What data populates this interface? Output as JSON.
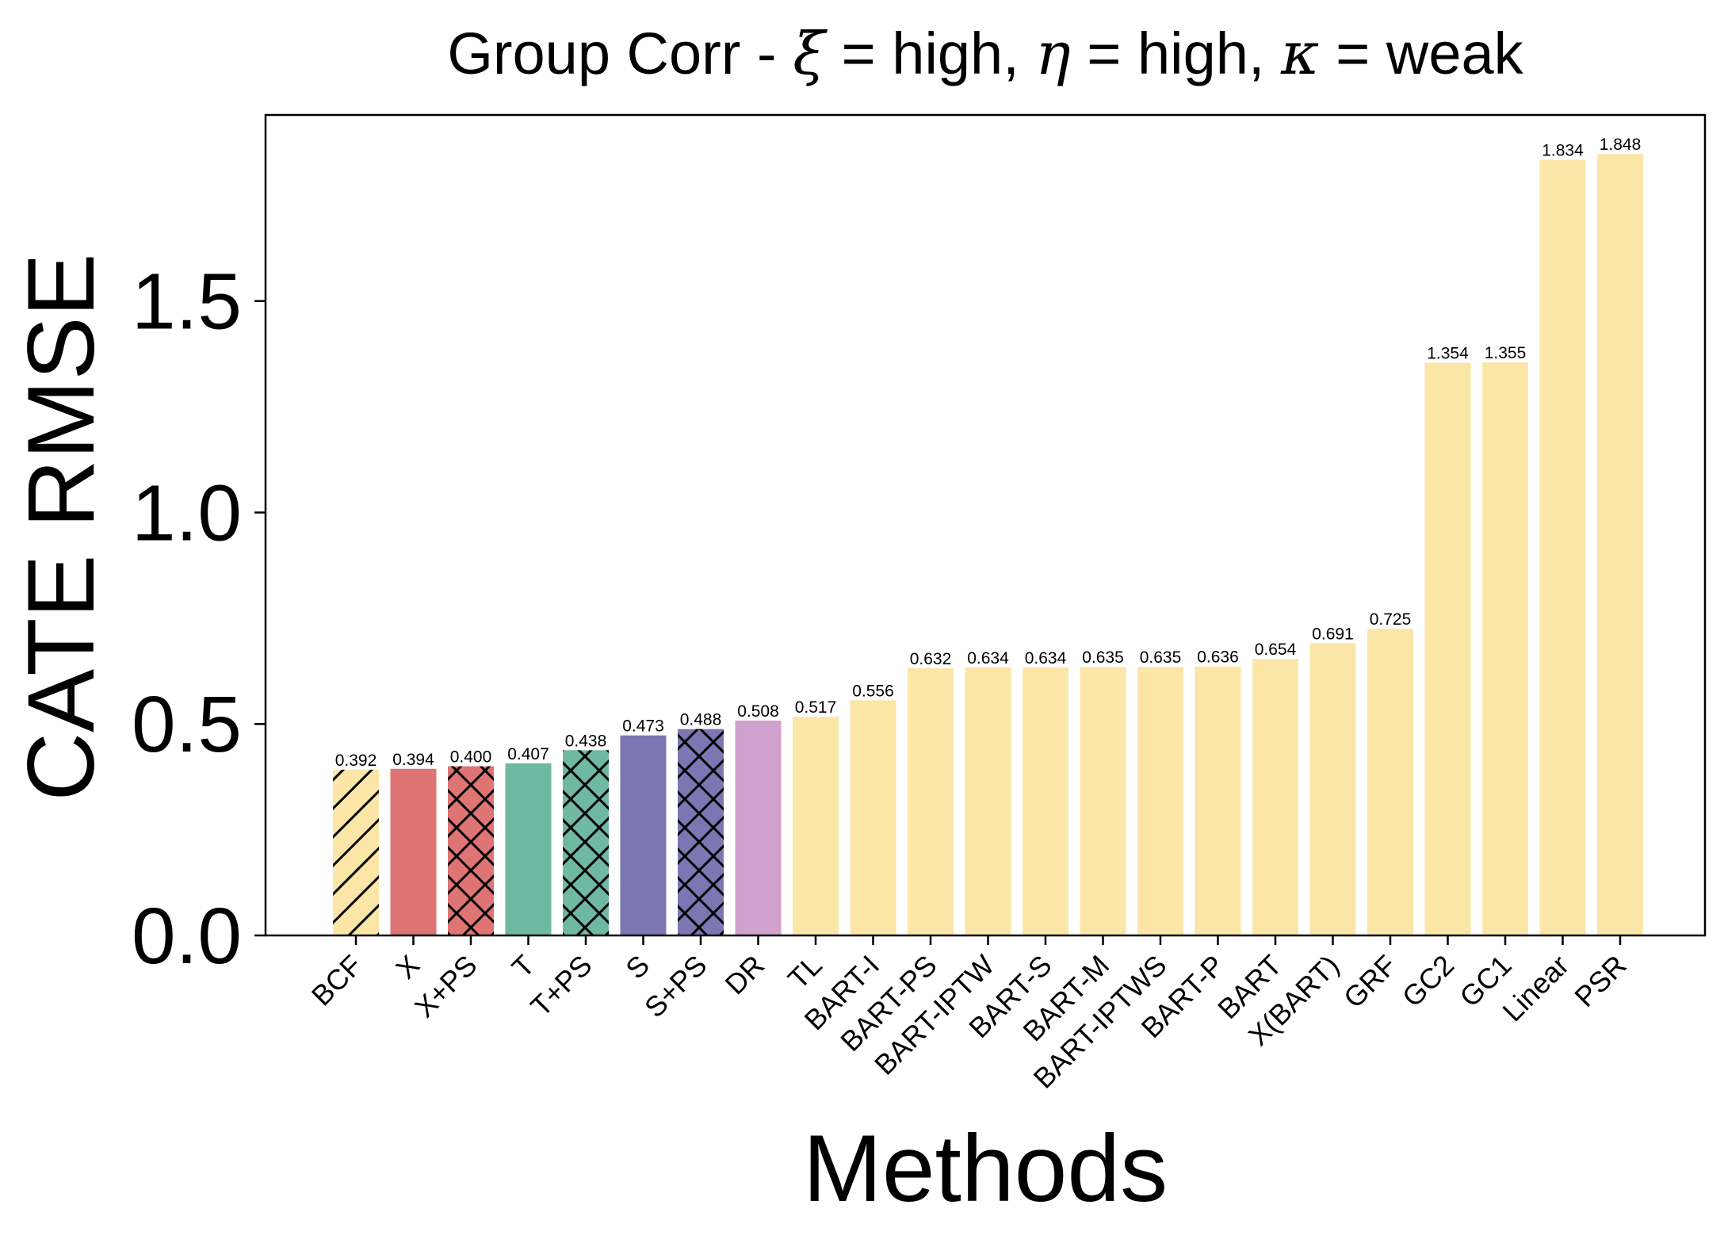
{
  "chart_data": {
    "type": "bar",
    "title": {
      "prefix": "Group Corr - ",
      "xi_symbol": "ξ",
      "xi_value": " = high, ",
      "eta_symbol": "η",
      "eta_value": " = high, ",
      "kappa_symbol": "κ",
      "kappa_value": " = weak"
    },
    "xlabel": "Methods",
    "ylabel": "CATE RMSE",
    "ylim": [
      0,
      1.94
    ],
    "yticks": [
      "0.0",
      "0.5",
      "1.0",
      "1.5"
    ],
    "categories": [
      "BCF",
      "X",
      "X+PS",
      "T",
      "T+PS",
      "S",
      "S+PS",
      "DR",
      "TL",
      "BART-I",
      "BART-PS",
      "BART-IPTW",
      "BART-S",
      "BART-M",
      "BART-IPTWS",
      "BART-P",
      "BART",
      "X(BART)",
      "GRF",
      "GC2",
      "GC1",
      "Linear",
      "PSR"
    ],
    "values": [
      0.392,
      0.394,
      0.4,
      0.407,
      0.438,
      0.473,
      0.488,
      0.508,
      0.517,
      0.556,
      0.632,
      0.634,
      0.634,
      0.635,
      0.635,
      0.636,
      0.654,
      0.691,
      0.725,
      1.354,
      1.355,
      1.834,
      1.848
    ],
    "value_labels": [
      "0.392",
      "0.394",
      "0.400",
      "0.407",
      "0.438",
      "0.473",
      "0.488",
      "0.508",
      "0.517",
      "0.556",
      "0.632",
      "0.634",
      "0.634",
      "0.635",
      "0.635",
      "0.636",
      "0.654",
      "0.691",
      "0.725",
      "1.354",
      "1.355",
      "1.834",
      "1.848"
    ],
    "colors": [
      "#fbe6a8",
      "#de7574",
      "#de7574",
      "#6fb8a2",
      "#6fb8a2",
      "#7c77b3",
      "#7c77b3",
      "#d0a1cd",
      "#fbe6a8",
      "#fbe6a8",
      "#fbe6a8",
      "#fbe6a8",
      "#fbe6a8",
      "#fbe6a8",
      "#fbe6a8",
      "#fbe6a8",
      "#fbe6a8",
      "#fbe6a8",
      "#fbe6a8",
      "#fbe6a8",
      "#fbe6a8",
      "#fbe6a8",
      "#fbe6a8"
    ],
    "hatches": [
      "diagonal",
      "none",
      "cross",
      "none",
      "cross",
      "none",
      "cross",
      "none",
      "none",
      "none",
      "none",
      "none",
      "none",
      "none",
      "none",
      "none",
      "none",
      "none",
      "none",
      "none",
      "none",
      "none",
      "none"
    ],
    "grid": false,
    "legend": "none"
  }
}
